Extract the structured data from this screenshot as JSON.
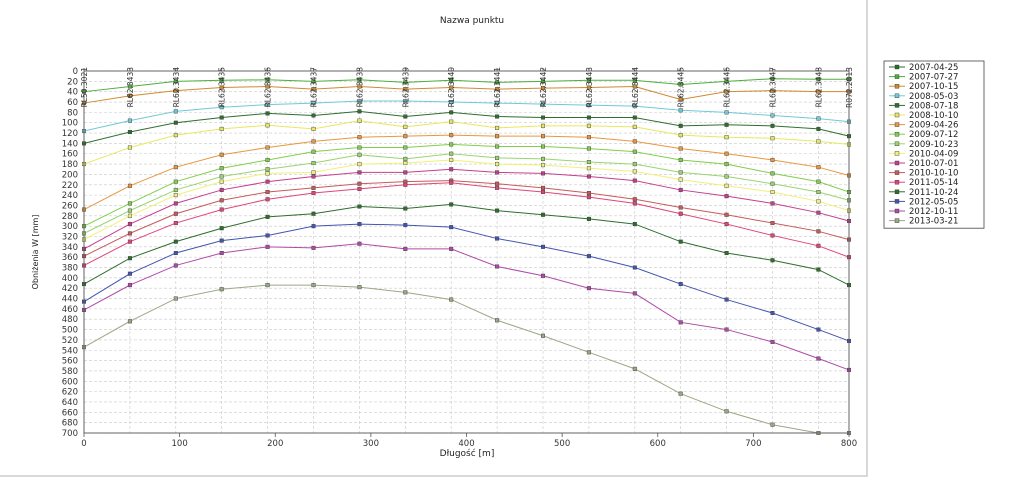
{
  "chart_data": {
    "type": "line",
    "title": "Nazwa punktu",
    "xlabel": "Długość [m]",
    "ylabel": "Obniżenia W [mm]",
    "xlim": [
      0,
      800
    ],
    "ylim": [
      0,
      700
    ],
    "y_inverted": true,
    "grid": true,
    "legend_position": "right",
    "x_ticks": [
      0,
      100,
      200,
      300,
      400,
      500,
      600,
      700,
      800
    ],
    "y_ticks": [
      0,
      20,
      40,
      60,
      80,
      100,
      120,
      140,
      160,
      180,
      200,
      220,
      240,
      260,
      280,
      300,
      320,
      340,
      360,
      380,
      400,
      420,
      440,
      460,
      480,
      500,
      520,
      540,
      560,
      580,
      600,
      620,
      640,
      660,
      680,
      700
    ],
    "point_names": [
      "RL50.3021",
      "RL62.3433",
      "RL62.3434",
      "RL62.3435",
      "RL62.3436",
      "RL62.3437",
      "RL62.3438",
      "RL62.3439",
      "RL62.3440",
      "RL62.3441",
      "RL62.3442",
      "RL62.3443",
      "RL62.3444",
      "RL62.3445",
      "RL62.3446",
      "RL62.3447",
      "RL62.3448",
      "R072.2813"
    ],
    "x": [
      0,
      48,
      96,
      144,
      192,
      240,
      288,
      336,
      384,
      432,
      480,
      528,
      576,
      624,
      672,
      720,
      768,
      800
    ],
    "series": [
      {
        "name": "2007-04-25",
        "color": "#2a6e2a",
        "values": [
          null,
          null,
          null,
          null,
          null,
          null,
          null,
          null,
          null,
          null,
          null,
          null,
          null,
          null,
          null,
          null,
          null,
          null
        ]
      },
      {
        "name": "2007-07-27",
        "color": "#4caf3a",
        "values": [
          40,
          30,
          20,
          18,
          17,
          20,
          17,
          22,
          18,
          22,
          20,
          18,
          18,
          26,
          20,
          15,
          16,
          16
        ]
      },
      {
        "name": "2007-10-15",
        "color": "#d08a2e",
        "values": [
          62,
          48,
          38,
          32,
          30,
          35,
          30,
          35,
          32,
          35,
          33,
          32,
          30,
          55,
          40,
          38,
          40,
          40
        ]
      },
      {
        "name": "2008-05-03",
        "color": "#72c9d6",
        "values": [
          116,
          96,
          78,
          70,
          65,
          62,
          58,
          58,
          60,
          62,
          64,
          66,
          68,
          76,
          80,
          86,
          92,
          98
        ]
      },
      {
        "name": "2008-07-18",
        "color": "#2e6e2e",
        "values": [
          140,
          118,
          100,
          90,
          82,
          86,
          78,
          88,
          80,
          88,
          90,
          90,
          90,
          106,
          104,
          106,
          112,
          126
        ]
      },
      {
        "name": "2008-10-10",
        "color": "#e8e860",
        "values": [
          180,
          148,
          124,
          112,
          105,
          112,
          96,
          108,
          98,
          110,
          106,
          106,
          108,
          124,
          128,
          130,
          136,
          142
        ]
      },
      {
        "name": "2009-04-26",
        "color": "#e8973e",
        "values": [
          268,
          222,
          186,
          162,
          148,
          136,
          128,
          126,
          124,
          126,
          126,
          128,
          136,
          150,
          160,
          172,
          186,
          202
        ]
      },
      {
        "name": "2009-07-12",
        "color": "#7fcf4a",
        "values": [
          300,
          256,
          214,
          188,
          172,
          156,
          148,
          148,
          142,
          146,
          146,
          150,
          156,
          172,
          180,
          198,
          214,
          234
        ]
      },
      {
        "name": "2009-10-23",
        "color": "#9ad470",
        "values": [
          314,
          270,
          230,
          204,
          190,
          178,
          162,
          170,
          160,
          168,
          170,
          176,
          180,
          196,
          204,
          218,
          234,
          250
        ]
      },
      {
        "name": "2010-04-09",
        "color": "#f0f07a",
        "values": [
          326,
          280,
          240,
          214,
          198,
          196,
          180,
          178,
          172,
          180,
          182,
          188,
          194,
          210,
          222,
          234,
          252,
          270
        ]
      },
      {
        "name": "2010-07-01",
        "color": "#c83c8e",
        "values": [
          344,
          296,
          256,
          230,
          214,
          204,
          196,
          196,
          190,
          196,
          198,
          204,
          212,
          230,
          242,
          256,
          274,
          290
        ]
      },
      {
        "name": "2010-10-10",
        "color": "#c85a5a",
        "values": [
          358,
          314,
          276,
          250,
          234,
          226,
          218,
          214,
          212,
          218,
          226,
          236,
          248,
          264,
          278,
          294,
          310,
          326
        ]
      },
      {
        "name": "2011-05-14",
        "color": "#e0457a",
        "values": [
          376,
          330,
          294,
          268,
          248,
          236,
          228,
          220,
          216,
          226,
          234,
          244,
          256,
          276,
          296,
          318,
          338,
          360
        ]
      },
      {
        "name": "2011-10-24",
        "color": "#2e6e2e",
        "values": [
          412,
          362,
          330,
          304,
          282,
          276,
          262,
          266,
          258,
          270,
          278,
          286,
          296,
          330,
          352,
          366,
          384,
          414
        ]
      },
      {
        "name": "2012-05-05",
        "color": "#4455b0",
        "values": [
          446,
          392,
          352,
          328,
          318,
          300,
          296,
          298,
          302,
          324,
          340,
          358,
          380,
          412,
          442,
          468,
          500,
          522
        ]
      },
      {
        "name": "2012-10-11",
        "color": "#b04aa8",
        "values": [
          462,
          414,
          376,
          352,
          340,
          342,
          334,
          344,
          344,
          378,
          396,
          420,
          430,
          486,
          500,
          524,
          556,
          578
        ]
      },
      {
        "name": "2013-03-21",
        "color": "#9aa886",
        "values": [
          534,
          484,
          440,
          422,
          414,
          414,
          418,
          428,
          442,
          482,
          512,
          544,
          576,
          624,
          658,
          684,
          704,
          710
        ]
      }
    ]
  }
}
